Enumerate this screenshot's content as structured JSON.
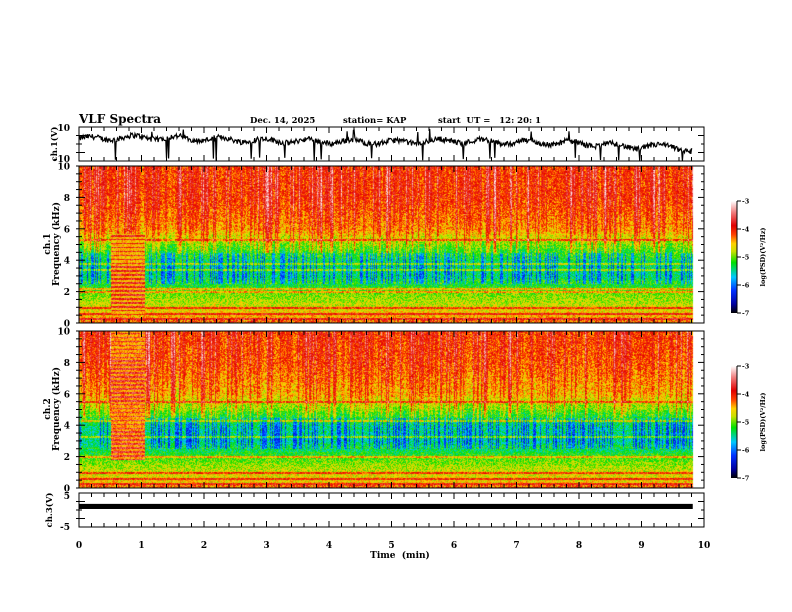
{
  "header": {
    "title": "VLF Spectra",
    "date": "Dec. 14, 2025",
    "station": "station= KAP",
    "start_ut": "start  UT =   12: 20: 1"
  },
  "chart_data": [
    {
      "type": "line",
      "name": "ch1-waveform",
      "ylabel": "ch.1(V)",
      "ylim": [
        -10,
        10
      ],
      "ytick_labels": [
        "10",
        "-10"
      ],
      "xlim": [
        0,
        10
      ],
      "data_end_min": 9.82,
      "description_level_v": 2.5,
      "trend": {
        "t": [
          0,
          1,
          2,
          3,
          4,
          5,
          6,
          7,
          8,
          9,
          9.5,
          9.82
        ],
        "v": [
          3,
          4,
          3,
          2,
          1.5,
          1,
          2,
          1,
          0.5,
          -2,
          -1,
          -5
        ]
      }
    },
    {
      "type": "heatmap",
      "name": "ch1-spectrogram",
      "ylabel_line1": "ch.1",
      "ylabel_line2": "Frequency (kHz)",
      "ylim": [
        0,
        10
      ],
      "ytick_labels": [
        "0",
        "2",
        "4",
        "6",
        "8",
        "10"
      ],
      "xlim": [
        0,
        10
      ],
      "data_end_min": 9.82,
      "base_log_psd_by_freq_khz": {
        "f": [
          0,
          1,
          2,
          3,
          4,
          5,
          6,
          8,
          10
        ],
        "v": [
          -4.3,
          -4.7,
          -5.0,
          -5.6,
          -5.5,
          -5.0,
          -4.4,
          -4.1,
          -4.1
        ]
      },
      "lines_khz": [
        0.3,
        0.6,
        1.0,
        2.0,
        2.2,
        3.4,
        3.8,
        5.3
      ],
      "burst": {
        "t": [
          0.5,
          1.05
        ],
        "f": [
          0.6,
          5.7
        ],
        "log_psd": -4.0
      }
    },
    {
      "type": "heatmap",
      "name": "ch2-spectrogram",
      "ylabel_line1": "ch.2",
      "ylabel_line2": "Frequency (kHz)",
      "ylim": [
        0,
        10
      ],
      "ytick_labels": [
        "0",
        "2",
        "4",
        "6",
        "8",
        "10"
      ],
      "xlim": [
        0,
        10
      ],
      "data_end_min": 9.82,
      "base_log_psd_by_freq_khz": {
        "f": [
          0,
          1,
          2,
          3,
          4,
          5,
          6,
          8,
          10
        ],
        "v": [
          -4.5,
          -4.7,
          -5.1,
          -5.7,
          -5.6,
          -5.0,
          -4.5,
          -4.2,
          -4.1
        ]
      },
      "lines_khz": [
        0.3,
        0.6,
        1.0,
        2.0,
        3.3,
        4.3,
        5.5
      ],
      "burst": {
        "t": [
          0.5,
          1.05
        ],
        "f": [
          1.8,
          10
        ],
        "log_psd": -3.9
      }
    },
    {
      "type": "line",
      "name": "ch3-waveform",
      "ylabel": "ch.3(V)",
      "ylim": [
        -5,
        5
      ],
      "ytick_labels": [
        "5",
        "-5"
      ],
      "xlim": [
        0,
        10
      ],
      "data_end_min": 9.82,
      "level_v": [
        0.3,
        1.8
      ]
    }
  ],
  "colorbars": [
    {
      "label": "log(PSD)(V²/Hz)",
      "range": [
        -7,
        -3
      ],
      "tick_labels": [
        "-3",
        "-4",
        "-5",
        "-6",
        "-7"
      ]
    },
    {
      "label": "log(PSD)(V²/Hz)",
      "range": [
        -7,
        -3
      ],
      "tick_labels": [
        "-3",
        "-4",
        "-5",
        "-6",
        "-7"
      ]
    }
  ],
  "x_axis": {
    "label": "Time  (min)",
    "tick_labels": [
      "0",
      "1",
      "2",
      "3",
      "4",
      "5",
      "6",
      "7",
      "8",
      "9",
      "10"
    ],
    "range": [
      0,
      10
    ]
  },
  "colors": {
    "frame": "#000000",
    "trace": "#000000"
  }
}
